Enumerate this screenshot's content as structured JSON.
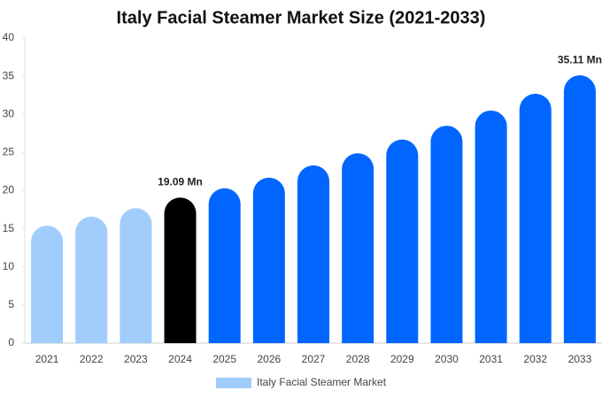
{
  "chart_data": {
    "type": "bar",
    "title": "Italy Facial Steamer Market Size (2021-2033)",
    "categories": [
      "2021",
      "2022",
      "2023",
      "2024",
      "2025",
      "2026",
      "2027",
      "2028",
      "2029",
      "2030",
      "2031",
      "2032",
      "2033"
    ],
    "series": [
      {
        "name": "Italy Facial Steamer Market",
        "color": "#a0cdfc",
        "values": [
          15.4,
          16.6,
          17.7,
          19.09,
          20.3,
          21.7,
          23.3,
          24.9,
          26.7,
          28.5,
          30.5,
          32.7,
          35.11
        ],
        "value_labels": [
          null,
          null,
          null,
          "19.09 Mn",
          null,
          null,
          null,
          null,
          null,
          null,
          null,
          null,
          "35.11 Mn"
        ],
        "bar_colors": [
          "#a0cdfc",
          "#a0cdfc",
          "#a0cdfc",
          "#000000",
          "#0066ff",
          "#0066ff",
          "#0066ff",
          "#0066ff",
          "#0066ff",
          "#0066ff",
          "#0066ff",
          "#0066ff",
          "#0066ff"
        ]
      }
    ],
    "ylim": [
      0,
      40
    ],
    "yticks": [
      0,
      5,
      10,
      15,
      20,
      25,
      30,
      35,
      40
    ],
    "grid": false,
    "legend": "bottom"
  }
}
